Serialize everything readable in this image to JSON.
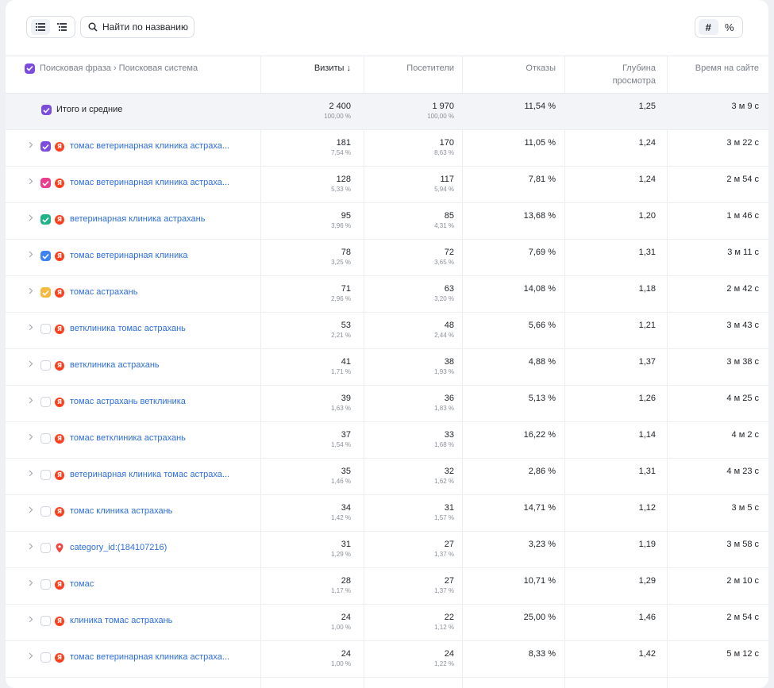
{
  "toolbar": {
    "search_label": "Найти по названию",
    "mode_hash": "#",
    "mode_percent": "%"
  },
  "header": {
    "dimension": "Поисковая фраза › Поисковая система",
    "visits": "Визиты ↓",
    "visitors": "Посетители",
    "bounces": "Отказы",
    "depth_line1": "Глубина",
    "depth_line2": "просмотра",
    "time": "Время на сайте"
  },
  "total": {
    "label": "Итого и средние",
    "visits": "2 400",
    "visits_pct": "100,00 %",
    "visitors": "1 970",
    "visitors_pct": "100,00 %",
    "bounces": "11,54 %",
    "depth": "1,25",
    "time": "3 м 9 с"
  },
  "colors": {
    "accent": "#7c4ddc",
    "link": "#2c6ede",
    "yandex": "#fc3f1d",
    "maps_pin": "#f2453d"
  },
  "rows": [
    {
      "phrase": "томас ветеринарная клиника астраха...",
      "source": "yandex",
      "checked": true,
      "color": "#7c4ddc",
      "visits": "181",
      "visits_pct": "7,54 %",
      "visitors": "170",
      "visitors_pct": "8,63 %",
      "bounces": "11,05 %",
      "depth": "1,24",
      "time": "3 м 22 с"
    },
    {
      "phrase": "томас ветеринарная клиника астраха...",
      "source": "yandex",
      "checked": true,
      "color": "#e83e8c",
      "visits": "128",
      "visits_pct": "5,33 %",
      "visitors": "117",
      "visitors_pct": "5,94 %",
      "bounces": "7,81 %",
      "depth": "1,24",
      "time": "2 м 54 с"
    },
    {
      "phrase": "ветеринарная клиника астрахань",
      "source": "yandex",
      "checked": true,
      "color": "#22b38a",
      "visits": "95",
      "visits_pct": "3,96 %",
      "visitors": "85",
      "visitors_pct": "4,31 %",
      "bounces": "13,68 %",
      "depth": "1,20",
      "time": "1 м 46 с"
    },
    {
      "phrase": "томас ветеринарная клиника",
      "source": "yandex",
      "checked": true,
      "color": "#3d84f0",
      "visits": "78",
      "visits_pct": "3,25 %",
      "visitors": "72",
      "visitors_pct": "3,65 %",
      "bounces": "7,69 %",
      "depth": "1,31",
      "time": "3 м 11 с"
    },
    {
      "phrase": "томас астрахань",
      "source": "yandex",
      "checked": true,
      "color": "#f5b942",
      "visits": "71",
      "visits_pct": "2,96 %",
      "visitors": "63",
      "visitors_pct": "3,20 %",
      "bounces": "14,08 %",
      "depth": "1,18",
      "time": "2 м 42 с"
    },
    {
      "phrase": "ветклиника томас астрахань",
      "source": "yandex",
      "checked": false,
      "color": "",
      "visits": "53",
      "visits_pct": "2,21 %",
      "visitors": "48",
      "visitors_pct": "2,44 %",
      "bounces": "5,66 %",
      "depth": "1,21",
      "time": "3 м 43 с"
    },
    {
      "phrase": "ветклиника астрахань",
      "source": "yandex",
      "checked": false,
      "color": "",
      "visits": "41",
      "visits_pct": "1,71 %",
      "visitors": "38",
      "visitors_pct": "1,93 %",
      "bounces": "4,88 %",
      "depth": "1,37",
      "time": "3 м 38 с"
    },
    {
      "phrase": "томас астрахань ветклиника",
      "source": "yandex",
      "checked": false,
      "color": "",
      "visits": "39",
      "visits_pct": "1,63 %",
      "visitors": "36",
      "visitors_pct": "1,83 %",
      "bounces": "5,13 %",
      "depth": "1,26",
      "time": "4 м 25 с"
    },
    {
      "phrase": "томас ветклиника астрахань",
      "source": "yandex",
      "checked": false,
      "color": "",
      "visits": "37",
      "visits_pct": "1,54 %",
      "visitors": "33",
      "visitors_pct": "1,68 %",
      "bounces": "16,22 %",
      "depth": "1,14",
      "time": "4 м 2 с"
    },
    {
      "phrase": "ветеринарная клиника томас астраха...",
      "source": "yandex",
      "checked": false,
      "color": "",
      "visits": "35",
      "visits_pct": "1,46 %",
      "visitors": "32",
      "visitors_pct": "1,62 %",
      "bounces": "2,86 %",
      "depth": "1,31",
      "time": "4 м 23 с"
    },
    {
      "phrase": "томас клиника астрахань",
      "source": "yandex",
      "checked": false,
      "color": "",
      "visits": "34",
      "visits_pct": "1,42 %",
      "visitors": "31",
      "visitors_pct": "1,57 %",
      "bounces": "14,71 %",
      "depth": "1,12",
      "time": "3 м 5 с"
    },
    {
      "phrase": "category_id:(184107216)",
      "source": "maps",
      "checked": false,
      "color": "",
      "visits": "31",
      "visits_pct": "1,29 %",
      "visitors": "27",
      "visitors_pct": "1,37 %",
      "bounces": "3,23 %",
      "depth": "1,19",
      "time": "3 м 58 с"
    },
    {
      "phrase": "томас",
      "source": "yandex",
      "checked": false,
      "color": "",
      "visits": "28",
      "visits_pct": "1,17 %",
      "visitors": "27",
      "visitors_pct": "1,37 %",
      "bounces": "10,71 %",
      "depth": "1,29",
      "time": "2 м 10 с"
    },
    {
      "phrase": "клиника томас астрахань",
      "source": "yandex",
      "checked": false,
      "color": "",
      "visits": "24",
      "visits_pct": "1,00 %",
      "visitors": "22",
      "visitors_pct": "1,12 %",
      "bounces": "25,00 %",
      "depth": "1,46",
      "time": "2 м 54 с"
    },
    {
      "phrase": "томас ветеринарная клиника астраха...",
      "source": "yandex",
      "checked": false,
      "color": "",
      "visits": "24",
      "visits_pct": "1,00 %",
      "visitors": "24",
      "visitors_pct": "1,22 %",
      "bounces": "8,33 %",
      "depth": "1,42",
      "time": "5 м 12 с"
    }
  ]
}
